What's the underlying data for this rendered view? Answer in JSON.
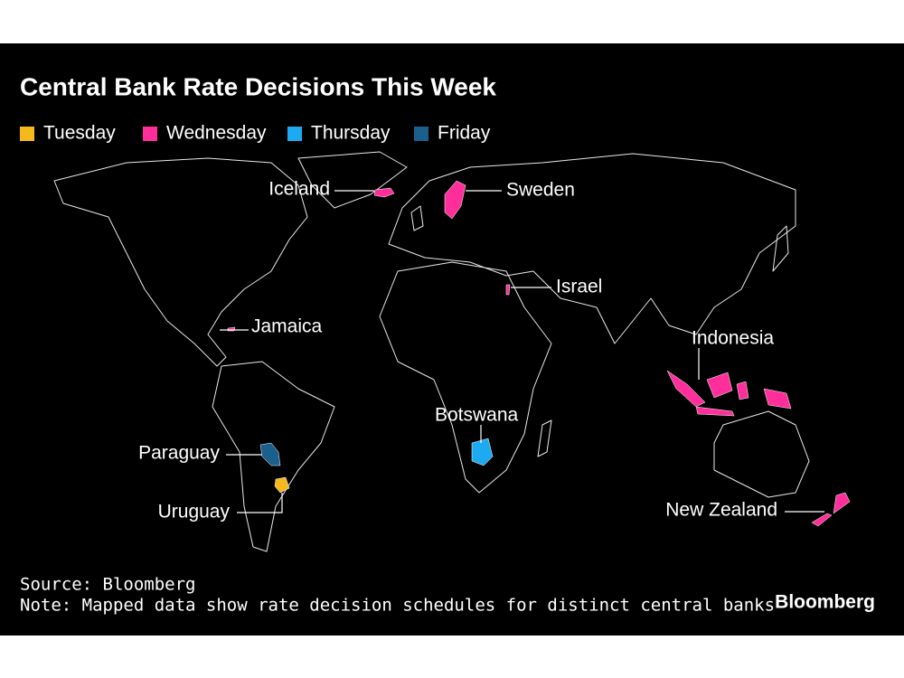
{
  "title": "Central Bank Rate Decisions This Week",
  "legend": [
    {
      "label": "Tuesday",
      "color": "#f5b91d"
    },
    {
      "label": "Wednesday",
      "color": "#ff2e9a"
    },
    {
      "label": "Thursday",
      "color": "#1eaaf1"
    },
    {
      "label": "Friday",
      "color": "#1b5f8c"
    }
  ],
  "countries": [
    {
      "name": "Iceland",
      "day": "Wednesday"
    },
    {
      "name": "Sweden",
      "day": "Wednesday"
    },
    {
      "name": "Israel",
      "day": "Wednesday"
    },
    {
      "name": "Jamaica",
      "day": "Wednesday"
    },
    {
      "name": "Indonesia",
      "day": "Wednesday"
    },
    {
      "name": "Botswana",
      "day": "Thursday"
    },
    {
      "name": "Paraguay",
      "day": "Friday"
    },
    {
      "name": "Uruguay",
      "day": "Tuesday"
    },
    {
      "name": "New Zealand",
      "day": "Wednesday"
    }
  ],
  "source": "Source: Bloomberg",
  "note": "Note: Mapped data show rate decision schedules for distinct central banks",
  "brand": "Bloomberg"
}
